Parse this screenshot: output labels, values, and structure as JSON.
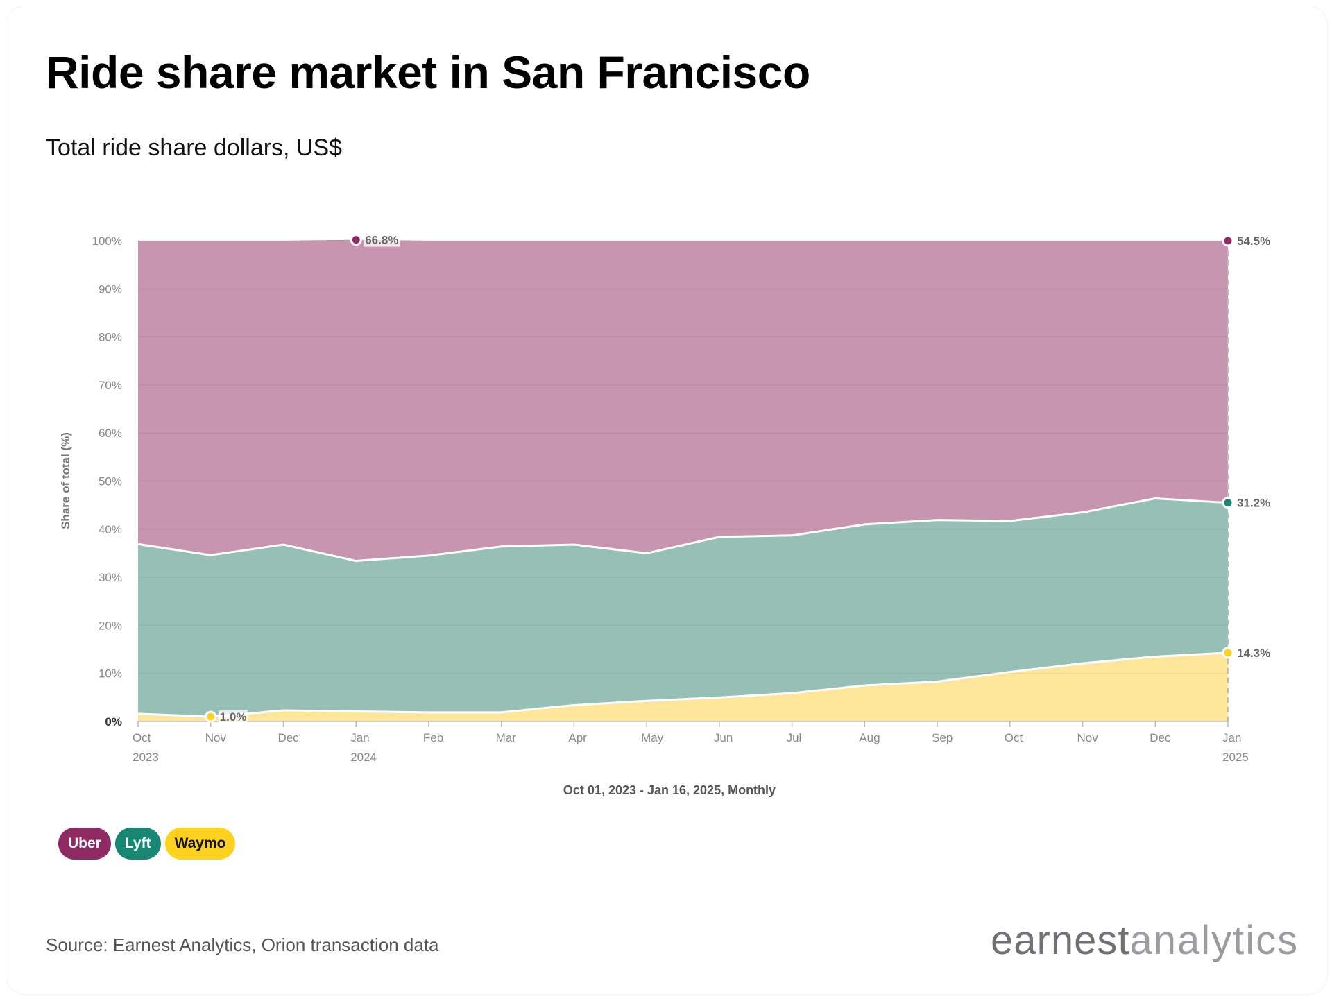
{
  "header": {
    "title": "Ride share market in San Francisco",
    "subtitle": "Total ride share dollars, US$"
  },
  "chart_data": {
    "type": "area",
    "stacked": true,
    "percent": true,
    "x": [
      "Oct 2023",
      "Nov 2023",
      "Dec 2023",
      "Jan 2024",
      "Feb 2024",
      "Mar 2024",
      "Apr 2024",
      "May 2024",
      "Jun 2024",
      "Jul 2024",
      "Aug 2024",
      "Sep 2024",
      "Oct 2024",
      "Nov 2024",
      "Dec 2024",
      "Jan 2025"
    ],
    "x_tick_labels": [
      {
        "month": "Oct",
        "year": "2023"
      },
      {
        "month": "Nov",
        "year": ""
      },
      {
        "month": "Dec",
        "year": ""
      },
      {
        "month": "Jan",
        "year": "2024"
      },
      {
        "month": "Feb",
        "year": ""
      },
      {
        "month": "Mar",
        "year": ""
      },
      {
        "month": "Apr",
        "year": ""
      },
      {
        "month": "May",
        "year": ""
      },
      {
        "month": "Jun",
        "year": ""
      },
      {
        "month": "Jul",
        "year": ""
      },
      {
        "month": "Aug",
        "year": ""
      },
      {
        "month": "Sep",
        "year": ""
      },
      {
        "month": "Oct",
        "year": ""
      },
      {
        "month": "Nov",
        "year": ""
      },
      {
        "month": "Dec",
        "year": ""
      },
      {
        "month": "Jan",
        "year": "2025"
      }
    ],
    "xlabel": "Oct 01, 2023 - Jan 16, 2025, Monthly",
    "ylabel": "Share of total (%)",
    "ylim": [
      0,
      100
    ],
    "y_ticks": [
      "0%",
      "10%",
      "20%",
      "30%",
      "40%",
      "50%",
      "60%",
      "70%",
      "80%",
      "90%",
      "100%"
    ],
    "grid": true,
    "series": [
      {
        "name": "Waymo",
        "color": "#fdd11f",
        "fill": "#fde59a",
        "values": [
          1.6,
          1.0,
          2.3,
          2.1,
          1.9,
          1.9,
          3.4,
          4.3,
          5.0,
          5.9,
          7.5,
          8.3,
          10.3,
          12.1,
          13.5,
          14.3
        ]
      },
      {
        "name": "Lyft",
        "color": "#178673",
        "fill": "#96c0b6",
        "values": [
          35.3,
          33.6,
          34.5,
          31.3,
          32.6,
          34.5,
          33.4,
          30.7,
          33.4,
          32.8,
          33.5,
          33.6,
          31.4,
          31.4,
          32.9,
          31.2
        ]
      },
      {
        "name": "Uber",
        "color": "#8f2a62",
        "fill": "#c895b1",
        "values": [
          63.1,
          65.4,
          63.2,
          66.8,
          65.5,
          63.6,
          63.2,
          65.0,
          61.6,
          61.3,
          59.0,
          58.1,
          58.3,
          56.5,
          53.6,
          54.5
        ]
      }
    ],
    "annotations": [
      {
        "series": "Uber",
        "x": "Jan 2024",
        "label": "66.8%"
      },
      {
        "series": "Waymo",
        "x": "Nov 2023",
        "label": "1.0%"
      },
      {
        "series": "Uber",
        "x": "Jan 2025",
        "label": "54.5%"
      },
      {
        "series": "Lyft",
        "x": "Jan 2025",
        "label": "31.2%"
      },
      {
        "series": "Waymo",
        "x": "Jan 2025",
        "label": "14.3%"
      }
    ],
    "legend_position": "bottom-left"
  },
  "legend": [
    {
      "label": "Uber",
      "bg": "#8f2a62",
      "fg": "#ffffff"
    },
    {
      "label": "Lyft",
      "bg": "#178673",
      "fg": "#ffffff"
    },
    {
      "label": "Waymo",
      "bg": "#fdd11f",
      "fg": "#111111"
    }
  ],
  "footer": {
    "source": "Source: Earnest Analytics, Orion transaction data",
    "logo_bold": "earnest",
    "logo_light": "analytics"
  }
}
